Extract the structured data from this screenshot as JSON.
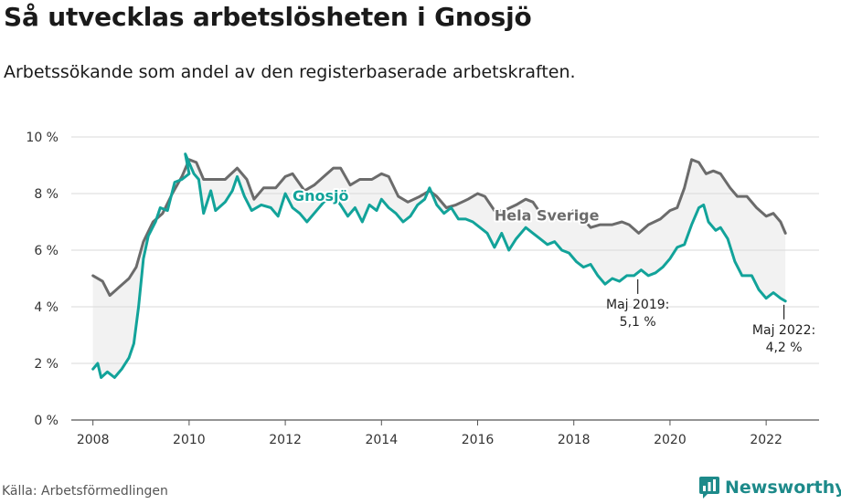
{
  "header": {
    "title": "Så utvecklas arbetslösheten i Gnosjö",
    "subtitle": "Arbetssökande som andel av den registerbaserade arbetskraften."
  },
  "footer": {
    "source": "Källa: Arbetsförmedlingen",
    "brand": "Newsworthy"
  },
  "colors": {
    "gnosjo": "#12a39a",
    "sverige": "#6b6b6b",
    "fill": "#f2f2f2",
    "grid": "#d9d9d9",
    "brand": "#1d8a8a"
  },
  "chart_data": {
    "type": "line",
    "xlim": [
      2007.55,
      2023.1
    ],
    "ylim": [
      0,
      10
    ],
    "x_ticks": [
      2008,
      2010,
      2012,
      2014,
      2016,
      2018,
      2020,
      2022
    ],
    "x_tick_labels": [
      "2008",
      "2010",
      "2012",
      "2014",
      "2016",
      "2018",
      "2020",
      "2022"
    ],
    "y_ticks": [
      0,
      2,
      4,
      6,
      8,
      10
    ],
    "y_tick_labels": [
      "0 %",
      "2 %",
      "4 %",
      "6 %",
      "8 %",
      "10 %"
    ],
    "grid": "horizontal",
    "series": [
      {
        "key": "sverige",
        "name": "Hela Sverige",
        "points": [
          [
            2008.0,
            5.1
          ],
          [
            2008.2,
            4.9
          ],
          [
            2008.35,
            4.4
          ],
          [
            2008.55,
            4.7
          ],
          [
            2008.75,
            5.0
          ],
          [
            2008.9,
            5.4
          ],
          [
            2009.05,
            6.3
          ],
          [
            2009.25,
            7.0
          ],
          [
            2009.45,
            7.3
          ],
          [
            2009.65,
            8.0
          ],
          [
            2009.85,
            8.6
          ],
          [
            2010.0,
            9.2
          ],
          [
            2010.15,
            9.1
          ],
          [
            2010.3,
            8.5
          ],
          [
            2010.5,
            8.5
          ],
          [
            2010.75,
            8.5
          ],
          [
            2011.0,
            8.9
          ],
          [
            2011.2,
            8.5
          ],
          [
            2011.35,
            7.8
          ],
          [
            2011.55,
            8.2
          ],
          [
            2011.8,
            8.2
          ],
          [
            2012.0,
            8.6
          ],
          [
            2012.15,
            8.7
          ],
          [
            2012.4,
            8.1
          ],
          [
            2012.6,
            8.3
          ],
          [
            2012.8,
            8.6
          ],
          [
            2013.0,
            8.9
          ],
          [
            2013.15,
            8.9
          ],
          [
            2013.35,
            8.3
          ],
          [
            2013.55,
            8.5
          ],
          [
            2013.8,
            8.5
          ],
          [
            2014.0,
            8.7
          ],
          [
            2014.15,
            8.6
          ],
          [
            2014.35,
            7.9
          ],
          [
            2014.55,
            7.7
          ],
          [
            2014.8,
            7.9
          ],
          [
            2015.0,
            8.1
          ],
          [
            2015.15,
            7.9
          ],
          [
            2015.35,
            7.5
          ],
          [
            2015.55,
            7.6
          ],
          [
            2015.8,
            7.8
          ],
          [
            2016.0,
            8.0
          ],
          [
            2016.15,
            7.9
          ],
          [
            2016.35,
            7.4
          ],
          [
            2016.55,
            7.4
          ],
          [
            2016.8,
            7.6
          ],
          [
            2017.0,
            7.8
          ],
          [
            2017.15,
            7.7
          ],
          [
            2017.35,
            7.2
          ],
          [
            2017.55,
            7.1
          ],
          [
            2017.8,
            7.2
          ],
          [
            2018.0,
            7.4
          ],
          [
            2018.15,
            7.2
          ],
          [
            2018.35,
            6.8
          ],
          [
            2018.55,
            6.9
          ],
          [
            2018.8,
            6.9
          ],
          [
            2019.0,
            7.0
          ],
          [
            2019.15,
            6.9
          ],
          [
            2019.35,
            6.6
          ],
          [
            2019.55,
            6.9
          ],
          [
            2019.8,
            7.1
          ],
          [
            2020.0,
            7.4
          ],
          [
            2020.15,
            7.5
          ],
          [
            2020.3,
            8.2
          ],
          [
            2020.45,
            9.2
          ],
          [
            2020.6,
            9.1
          ],
          [
            2020.75,
            8.7
          ],
          [
            2020.9,
            8.8
          ],
          [
            2021.05,
            8.7
          ],
          [
            2021.25,
            8.2
          ],
          [
            2021.4,
            7.9
          ],
          [
            2021.6,
            7.9
          ],
          [
            2021.8,
            7.5
          ],
          [
            2022.0,
            7.2
          ],
          [
            2022.15,
            7.3
          ],
          [
            2022.3,
            7.0
          ],
          [
            2022.4,
            6.6
          ]
        ]
      },
      {
        "key": "gnosjo",
        "name": "Gnosjö",
        "points": [
          [
            2008.0,
            1.8
          ],
          [
            2008.1,
            2.0
          ],
          [
            2008.17,
            1.5
          ],
          [
            2008.3,
            1.7
          ],
          [
            2008.45,
            1.5
          ],
          [
            2008.6,
            1.8
          ],
          [
            2008.75,
            2.2
          ],
          [
            2008.85,
            2.7
          ],
          [
            2008.95,
            4.0
          ],
          [
            2009.05,
            5.7
          ],
          [
            2009.15,
            6.5
          ],
          [
            2009.3,
            7.0
          ],
          [
            2009.4,
            7.5
          ],
          [
            2009.55,
            7.4
          ],
          [
            2009.7,
            8.4
          ],
          [
            2009.85,
            8.5
          ],
          [
            2010.0,
            8.7
          ],
          [
            2009.92,
            9.4
          ],
          [
            2010.1,
            8.7
          ],
          [
            2010.2,
            8.5
          ],
          [
            2010.3,
            7.3
          ],
          [
            2010.45,
            8.1
          ],
          [
            2010.55,
            7.4
          ],
          [
            2010.75,
            7.7
          ],
          [
            2010.9,
            8.1
          ],
          [
            2011.0,
            8.6
          ],
          [
            2011.15,
            7.9
          ],
          [
            2011.3,
            7.4
          ],
          [
            2011.5,
            7.6
          ],
          [
            2011.7,
            7.5
          ],
          [
            2011.85,
            7.2
          ],
          [
            2012.0,
            8.0
          ],
          [
            2012.15,
            7.5
          ],
          [
            2012.3,
            7.3
          ],
          [
            2012.45,
            7.0
          ],
          [
            2012.6,
            7.3
          ],
          [
            2012.8,
            7.7
          ],
          [
            2013.0,
            7.9
          ],
          [
            2013.15,
            7.6
          ],
          [
            2013.3,
            7.2
          ],
          [
            2013.45,
            7.5
          ],
          [
            2013.6,
            7.0
          ],
          [
            2013.75,
            7.6
          ],
          [
            2013.9,
            7.4
          ],
          [
            2014.0,
            7.8
          ],
          [
            2014.15,
            7.5
          ],
          [
            2014.3,
            7.3
          ],
          [
            2014.45,
            7.0
          ],
          [
            2014.6,
            7.2
          ],
          [
            2014.75,
            7.6
          ],
          [
            2014.9,
            7.8
          ],
          [
            2015.0,
            8.2
          ],
          [
            2015.15,
            7.6
          ],
          [
            2015.3,
            7.3
          ],
          [
            2015.45,
            7.5
          ],
          [
            2015.6,
            7.1
          ],
          [
            2015.75,
            7.1
          ],
          [
            2015.9,
            7.0
          ],
          [
            2016.05,
            6.8
          ],
          [
            2016.2,
            6.6
          ],
          [
            2016.35,
            6.1
          ],
          [
            2016.5,
            6.6
          ],
          [
            2016.65,
            6.0
          ],
          [
            2016.8,
            6.4
          ],
          [
            2017.0,
            6.8
          ],
          [
            2017.15,
            6.6
          ],
          [
            2017.3,
            6.4
          ],
          [
            2017.45,
            6.2
          ],
          [
            2017.6,
            6.3
          ],
          [
            2017.75,
            6.0
          ],
          [
            2017.9,
            5.9
          ],
          [
            2018.05,
            5.6
          ],
          [
            2018.2,
            5.4
          ],
          [
            2018.35,
            5.5
          ],
          [
            2018.5,
            5.1
          ],
          [
            2018.65,
            4.8
          ],
          [
            2018.8,
            5.0
          ],
          [
            2018.95,
            4.9
          ],
          [
            2019.1,
            5.1
          ],
          [
            2019.25,
            5.1
          ],
          [
            2019.4,
            5.3
          ],
          [
            2019.55,
            5.1
          ],
          [
            2019.7,
            5.2
          ],
          [
            2019.85,
            5.4
          ],
          [
            2020.0,
            5.7
          ],
          [
            2020.15,
            6.1
          ],
          [
            2020.3,
            6.2
          ],
          [
            2020.45,
            6.9
          ],
          [
            2020.6,
            7.5
          ],
          [
            2020.7,
            7.6
          ],
          [
            2020.8,
            7.0
          ],
          [
            2020.95,
            6.7
          ],
          [
            2021.05,
            6.8
          ],
          [
            2021.2,
            6.4
          ],
          [
            2021.35,
            5.6
          ],
          [
            2021.5,
            5.1
          ],
          [
            2021.7,
            5.1
          ],
          [
            2021.85,
            4.6
          ],
          [
            2022.0,
            4.3
          ],
          [
            2022.15,
            4.5
          ],
          [
            2022.3,
            4.3
          ],
          [
            2022.4,
            4.2
          ]
        ]
      }
    ],
    "annotations": [
      {
        "line1": "Maj 2019:",
        "line2": "5,1 %",
        "x": 2019.33,
        "y": 5.1
      },
      {
        "line1": "Maj 2022:",
        "line2": "4,2 %",
        "x": 2022.37,
        "y": 4.2
      }
    ]
  }
}
